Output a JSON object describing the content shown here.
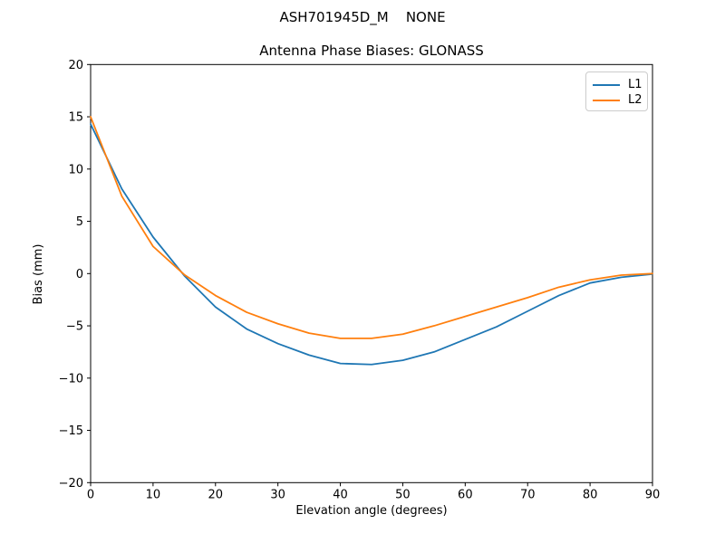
{
  "chart_data": {
    "type": "line",
    "title": "ASH701945D_M    NONE",
    "subtitle": "Antenna Phase Biases: GLONASS",
    "xlabel": "Elevation angle (degrees)",
    "ylabel": "Bias (mm)",
    "xlim": [
      0,
      90
    ],
    "ylim": [
      -20,
      20
    ],
    "grid": false,
    "legend_position": "upper right",
    "x": [
      0,
      5,
      10,
      15,
      20,
      25,
      30,
      35,
      40,
      45,
      50,
      55,
      60,
      65,
      70,
      75,
      80,
      85,
      90
    ],
    "series": [
      {
        "name": "L1",
        "color": "#1f77b4",
        "values": [
          14.3,
          8.1,
          3.5,
          -0.2,
          -3.2,
          -5.3,
          -6.7,
          -7.8,
          -8.6,
          -8.7,
          -8.3,
          -7.5,
          -6.3,
          -5.1,
          -3.6,
          -2.1,
          -0.9,
          -0.35,
          -0.05
        ]
      },
      {
        "name": "L2",
        "color": "#ff7f0e",
        "values": [
          15.0,
          7.4,
          2.6,
          -0.1,
          -2.1,
          -3.7,
          -4.8,
          -5.7,
          -6.2,
          -6.2,
          -5.8,
          -5.0,
          -4.1,
          -3.2,
          -2.3,
          -1.3,
          -0.6,
          -0.15,
          0.0
        ]
      }
    ],
    "xtick_values": [
      0,
      10,
      20,
      30,
      40,
      50,
      60,
      70,
      80,
      90
    ],
    "xtick_labels": [
      "0",
      "10",
      "20",
      "30",
      "40",
      "50",
      "60",
      "70",
      "80",
      "90"
    ],
    "ytick_values": [
      20,
      15,
      10,
      5,
      0,
      -5,
      -10,
      -15,
      -20
    ],
    "ytick_labels": [
      "20",
      "15",
      "10",
      "5",
      "0",
      "−5",
      "−10",
      "−15",
      "−20"
    ]
  },
  "axis_color": "#000000",
  "background_color": "#ffffff"
}
